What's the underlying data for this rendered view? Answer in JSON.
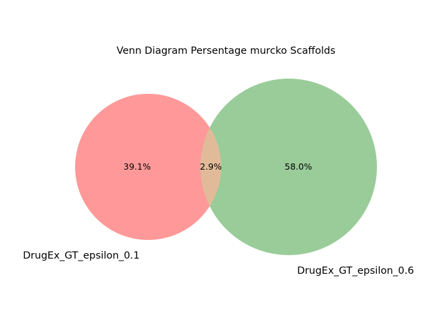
{
  "title": "Venn Diagram Persentage murcko Scaffolds",
  "sets": [
    {
      "name": "DrugEx_GT_epsilon_0.1",
      "color": "#ff9999"
    },
    {
      "name": "DrugEx_GT_epsilon_0.6",
      "color": "#99cc99"
    }
  ],
  "overlap_color": "#e1bb99",
  "regions": {
    "left_only": "39.1%",
    "overlap": "2.9%",
    "right_only": "58.0%"
  }
}
